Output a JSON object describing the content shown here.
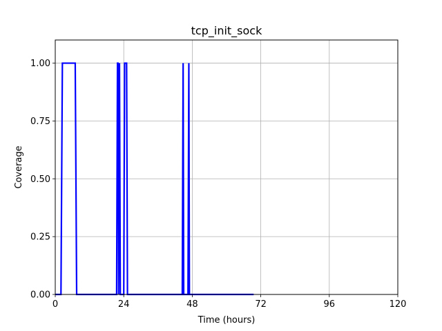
{
  "chart_data": {
    "type": "line",
    "title": "tcp_init_sock",
    "xlabel": "Time (hours)",
    "ylabel": "Coverage",
    "xlim": [
      0,
      120
    ],
    "ylim": [
      0,
      1.1
    ],
    "xticks": [
      0,
      24,
      48,
      72,
      96,
      120
    ],
    "yticks": [
      0.0,
      0.25,
      0.5,
      0.75,
      1.0
    ],
    "xtick_labels": [
      "0",
      "24",
      "48",
      "72",
      "96",
      "120"
    ],
    "ytick_labels": [
      "0.00",
      "0.25",
      "0.50",
      "0.75",
      "1.00"
    ],
    "grid": true,
    "series": [
      {
        "color": "#0000ff",
        "x": [
          0,
          2,
          2.5,
          7,
          7.5,
          21.5,
          21.8,
          22.0,
          22.2,
          22.5,
          22.8,
          24.0,
          24.3,
          25.0,
          25.3,
          44.5,
          44.8,
          45.0,
          45.3,
          46.5,
          46.8,
          47.0,
          47.3,
          69.5
        ],
        "y": [
          0,
          0,
          1,
          1,
          0,
          0,
          1,
          1,
          0,
          1,
          0,
          0,
          1,
          1,
          0,
          0,
          1,
          0,
          0,
          0,
          1,
          0,
          0,
          0
        ]
      }
    ]
  }
}
